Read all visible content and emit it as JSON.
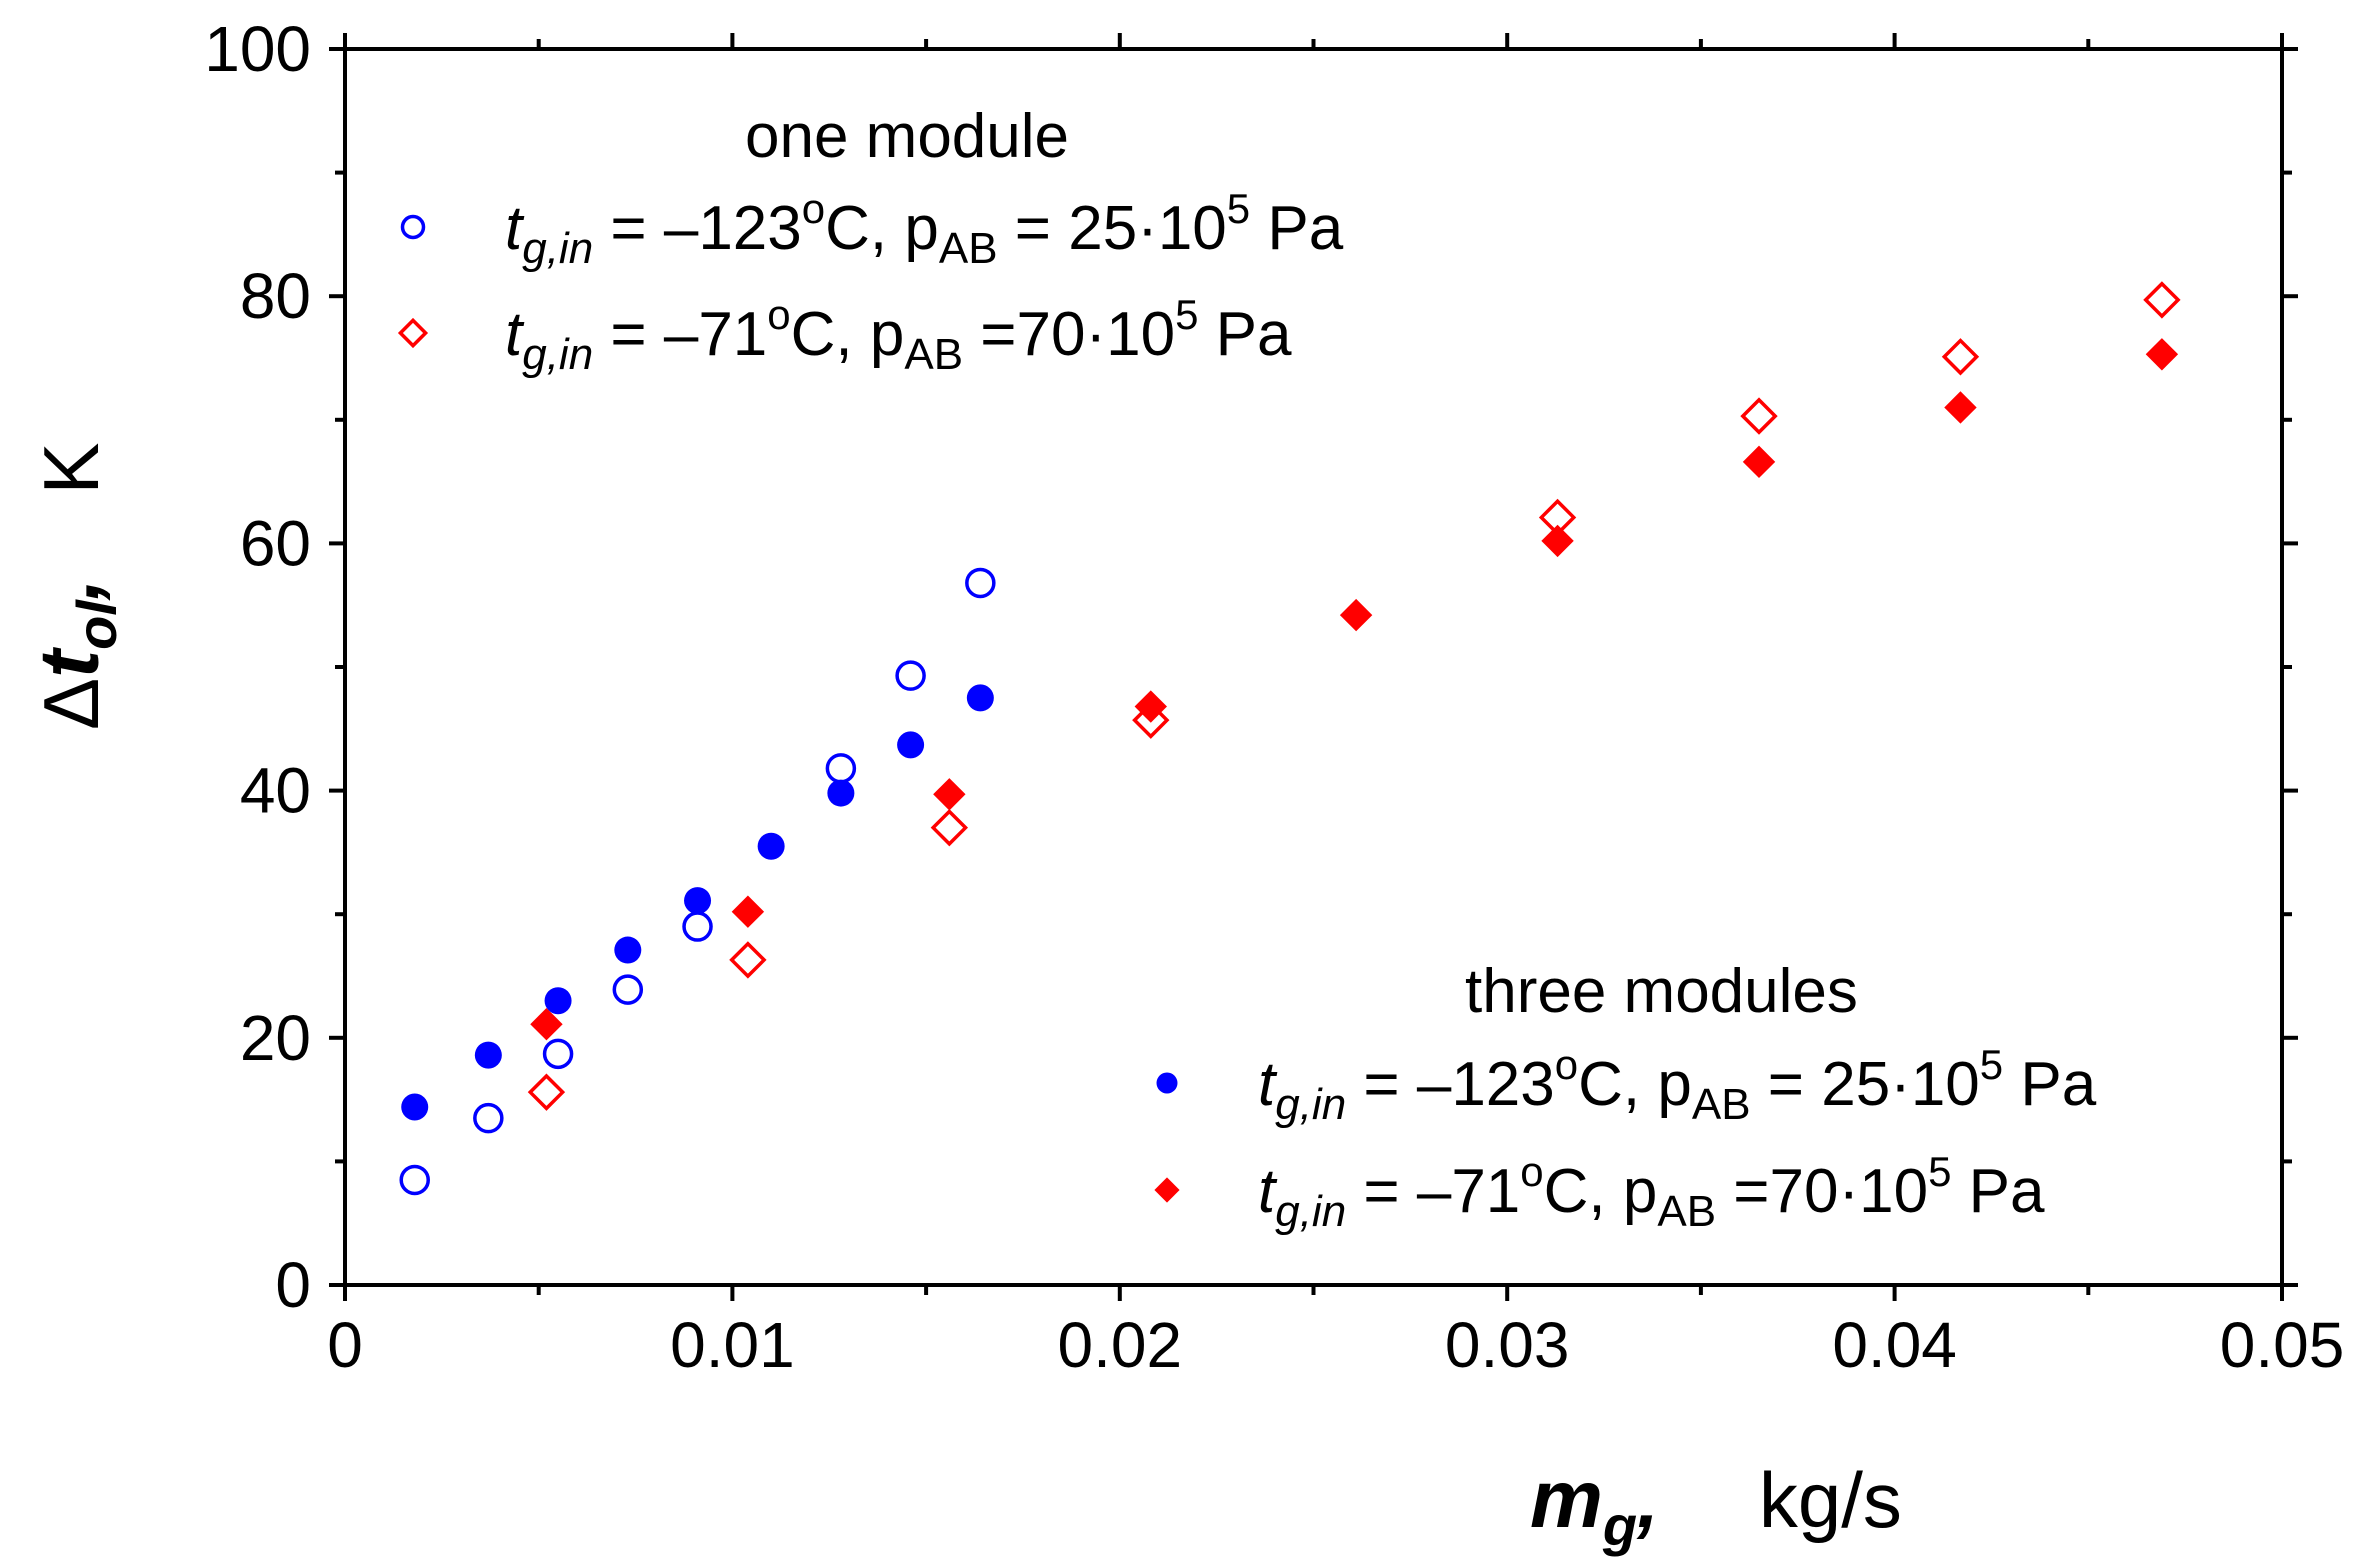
{
  "chart_data": {
    "type": "scatter",
    "title": "",
    "xlim": [
      0,
      0.05
    ],
    "ylim": [
      0,
      100
    ],
    "x_ticks": [
      0,
      0.01,
      0.02,
      0.03,
      0.04,
      0.05
    ],
    "x_tick_labels": [
      "0",
      "0.01",
      "0.02",
      "0.03",
      "0.04",
      "0.05"
    ],
    "y_ticks": [
      0,
      20,
      40,
      60,
      80,
      100
    ],
    "y_tick_labels": [
      "0",
      "20",
      "40",
      "60",
      "80",
      "100"
    ],
    "xlabel": {
      "symbol": "m",
      "subscript": "g",
      "comma": ",",
      "unit": "kg/s"
    },
    "ylabel": {
      "delta": "Δ",
      "symbol": "t",
      "subscript": "ol",
      "comma": ",",
      "unit": "K"
    },
    "legend_groups": [
      {
        "title": "one module",
        "placement": "top-left"
      },
      {
        "title": "three modules",
        "placement": "bottom-right"
      }
    ],
    "series": [
      {
        "name": "one module, t_g,in = -123°C, p_AB = 25·10^5 Pa",
        "group": 0,
        "marker": "circle",
        "filled": false,
        "color": "#0000ff",
        "label": {
          "t": "t",
          "tsub": "g,in",
          "eq1": " = –123",
          "deg": "o",
          "unit": "C, p",
          "psub": "AB",
          "eq2": " = 25·10",
          "exp": "5",
          "tail": " Pa"
        },
        "points": [
          [
            0.0018,
            8.5
          ],
          [
            0.0037,
            13.5
          ],
          [
            0.0055,
            18.7
          ],
          [
            0.0073,
            23.9
          ],
          [
            0.0091,
            29.0
          ],
          [
            0.0128,
            41.8
          ],
          [
            0.0146,
            49.3
          ],
          [
            0.0164,
            56.8
          ]
        ]
      },
      {
        "name": "one module, t_g,in = -71°C, p_AB = 70·10^5 Pa",
        "group": 0,
        "marker": "diamond",
        "filled": false,
        "color": "#ff0000",
        "label": {
          "t": "t",
          "tsub": "g,in",
          "eq1": " = –71",
          "deg": "o",
          "unit": "C, p",
          "psub": "AB",
          "eq2": " =70·10",
          "exp": "5",
          "tail": " Pa"
        },
        "points": [
          [
            0.0052,
            15.6
          ],
          [
            0.0104,
            26.3
          ],
          [
            0.0156,
            37.0
          ],
          [
            0.0208,
            45.7
          ],
          [
            0.0313,
            62.1
          ],
          [
            0.0365,
            70.3
          ],
          [
            0.0417,
            75.1
          ],
          [
            0.0469,
            79.7
          ]
        ]
      },
      {
        "name": "three modules, t_g,in = -123°C, p_AB = 25·10^5 Pa",
        "group": 1,
        "marker": "circle",
        "filled": true,
        "color": "#0000ff",
        "label": {
          "t": "t",
          "tsub": "g,in",
          "eq1": " = –123",
          "deg": "o",
          "unit": "C, p",
          "psub": "AB",
          "eq2": " = 25·10",
          "exp": "5",
          "tail": " Pa"
        },
        "points": [
          [
            0.0018,
            14.4
          ],
          [
            0.0037,
            18.6
          ],
          [
            0.0055,
            23.0
          ],
          [
            0.0073,
            27.1
          ],
          [
            0.0091,
            31.1
          ],
          [
            0.011,
            35.5
          ],
          [
            0.0128,
            39.8
          ],
          [
            0.0146,
            43.7
          ],
          [
            0.0164,
            47.5
          ]
        ]
      },
      {
        "name": "three modules, t_g,in = -71°C, p_AB = 70·10^5 Pa",
        "group": 1,
        "marker": "diamond",
        "filled": true,
        "color": "#ff0000",
        "label": {
          "t": "t",
          "tsub": "g,in",
          "eq1": " = –71",
          "deg": "o",
          "unit": "C, p",
          "psub": "AB",
          "eq2": " =70·10",
          "exp": "5",
          "tail": " Pa"
        },
        "points": [
          [
            0.0052,
            21.1
          ],
          [
            0.0104,
            30.2
          ],
          [
            0.0156,
            39.7
          ],
          [
            0.0208,
            46.8
          ],
          [
            0.0261,
            54.2
          ],
          [
            0.0313,
            60.2
          ],
          [
            0.0365,
            66.6
          ],
          [
            0.0417,
            71.0
          ],
          [
            0.0469,
            75.3
          ]
        ]
      }
    ]
  }
}
